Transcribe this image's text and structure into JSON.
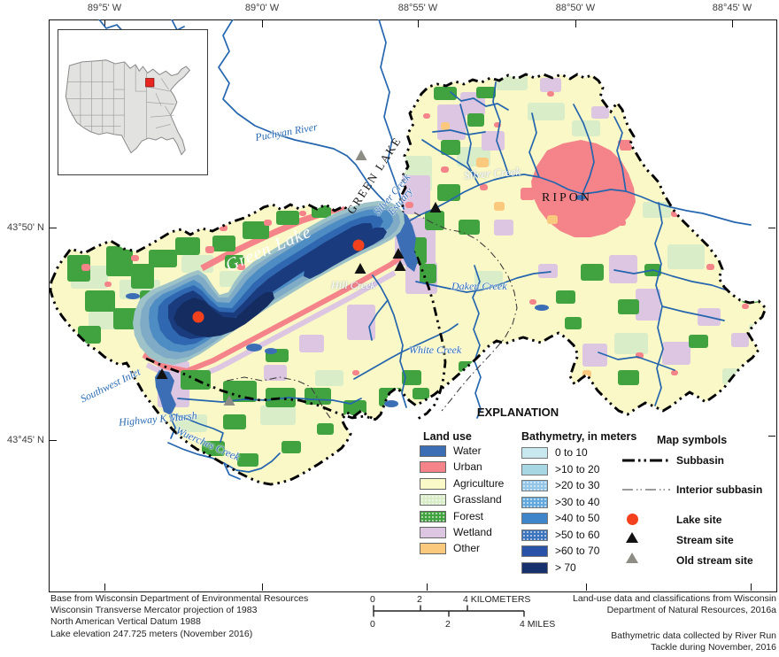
{
  "axis": {
    "top": [
      "89°5' W",
      "89°0' W",
      "88°55' W",
      "88°50' W",
      "88°45' W"
    ],
    "left": [
      "43°50' N",
      "43°45' N"
    ]
  },
  "labels": {
    "green_lake": "Green Lake",
    "green_lake_city": "GREEN LAKE",
    "puchyan_river": "Puchyan River",
    "silver_creek": "Silver Creek",
    "silver_creek_estuary_line1": "Silver Creek",
    "silver_creek_estuary_line2": "Estuary",
    "ripon": "RIPON",
    "hill_creek": "Hill Creek",
    "daken_creek": "Daken Creek",
    "white_creek": "White Creek",
    "southwest_inlet": "Southwest Inlet",
    "highway_k_marsh": "Highway K Marsh",
    "wuerches_creek": "Wuerches Creek"
  },
  "legend": {
    "title": "EXPLANATION",
    "landuse": {
      "title": "Land use",
      "items": [
        {
          "label": "Water",
          "color": "#3B6EB5"
        },
        {
          "label": "Urban",
          "color": "#F4838A"
        },
        {
          "label": "Agriculture",
          "color": "#FAFAC8"
        },
        {
          "label": "Grassland",
          "color": "#D9EDC8"
        },
        {
          "label": "Forest",
          "color": "#41A33F"
        },
        {
          "label": "Wetland",
          "color": "#DCC6E2"
        },
        {
          "label": "Other",
          "color": "#FAC97E"
        }
      ]
    },
    "bathymetry": {
      "title": "Bathymetry, in meters",
      "items": [
        {
          "label": "0 to 10",
          "color": "#C8E8EF"
        },
        {
          "label": ">10 to 20",
          "color": "#A6D7E2"
        },
        {
          "label": ">20 to 30",
          "color": "#93C5E6"
        },
        {
          "label": ">30 to 40",
          "color": "#63A9DC"
        },
        {
          "label": ">40 to 50",
          "color": "#3E86C9"
        },
        {
          "label": ">50 to 60",
          "color": "#3B74BC"
        },
        {
          "label": ">60 to 70",
          "color": "#2A52A6"
        },
        {
          "label": "> 70",
          "color": "#16316B"
        }
      ]
    },
    "symbols": {
      "title": "Map symbols",
      "items": [
        {
          "label": "Subbasin"
        },
        {
          "label": "Interior subbasin"
        },
        {
          "label": "Lake site"
        },
        {
          "label": "Stream site"
        },
        {
          "label": "Old stream site"
        }
      ]
    }
  },
  "scalebar": {
    "km_0": "0",
    "km_2": "2",
    "km_4": "4 KILOMETERS",
    "mi_0": "0",
    "mi_2": "2",
    "mi_4": "4 MILES"
  },
  "credits_left": [
    "Base from Wisconsin Department of Environmental Resources",
    "Wisconsin Transverse Mercator projection of 1983",
    "North American Vertical Datum 1988",
    "Lake elevation 247.725 meters (November 2016)"
  ],
  "credits_right_top": [
    "Land-use data and classifications from Wisconsin",
    "Department of Natural Resources, 2016a"
  ],
  "credits_right_bottom": [
    "Bathymetric data collected by River Run",
    "Tackle during November, 2016"
  ],
  "palette": {
    "agriculture": "#FAF8C6",
    "forest": "#41A33F",
    "grassland": "#D9EDC8",
    "wetland": "#DCC6E2",
    "urban": "#F4838A",
    "other": "#FAC97E",
    "water": "#3B6EB5",
    "stream": "#2565AE",
    "lake_rings": [
      "#9DC2C7",
      "#7FABC7",
      "#4E8CC4",
      "#2F68B0",
      "#1A3C7E",
      "#142C60"
    ],
    "lake_site": "#F2411C",
    "stream_site": "#111111",
    "old_stream_site": "#8D8D85",
    "subbasin_line": "#000000",
    "interior_line": "#3F3F3F",
    "usa_fill": "#E2E2E0",
    "usa_line": "#8B8B8B",
    "location_marker": "#E8251F"
  }
}
